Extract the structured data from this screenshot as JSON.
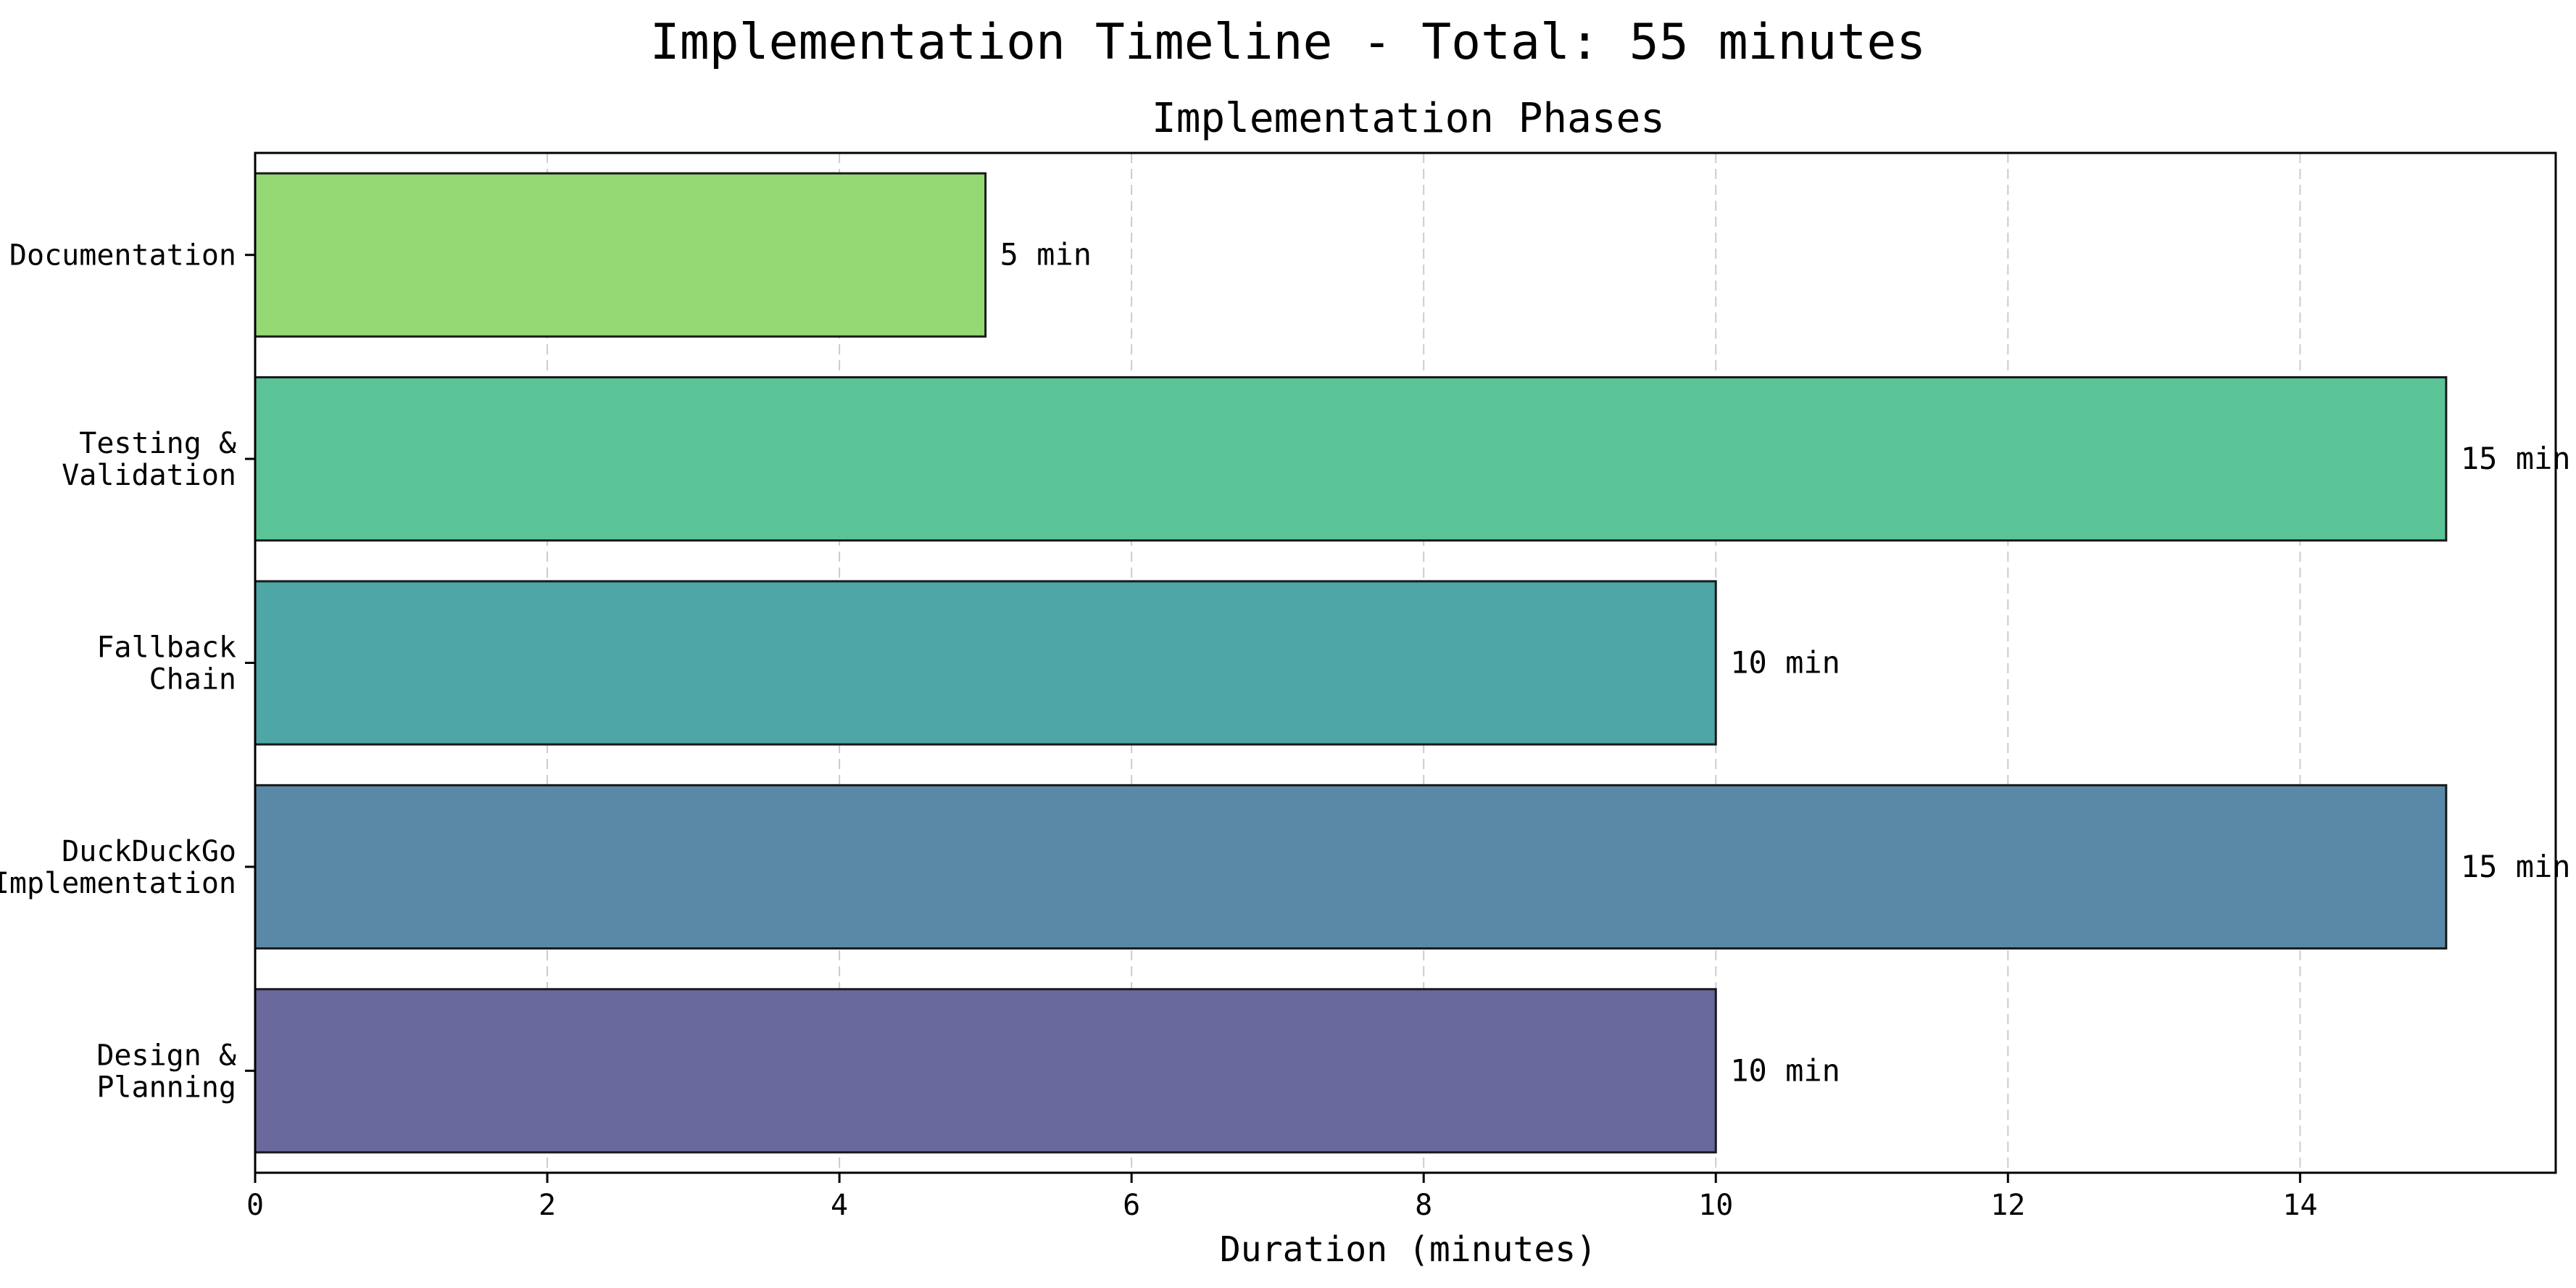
{
  "figure": {
    "suptitle": "Implementation Timeline - Total: 55 minutes"
  },
  "chart_data": {
    "type": "bar",
    "orientation": "horizontal",
    "title": "Implementation Phases",
    "xlabel": "Duration (minutes)",
    "ylabel": "",
    "xlim": [
      0,
      15.75
    ],
    "xticks": [
      0,
      2,
      4,
      6,
      8,
      10,
      12,
      14
    ],
    "grid": "x-dashed",
    "categories": [
      [
        "Design &",
        "Planning"
      ],
      [
        "DuckDuckGo",
        "Implementation"
      ],
      [
        "Fallback",
        "Chain"
      ],
      [
        "Testing &",
        "Validation"
      ],
      [
        "Documentation"
      ]
    ],
    "values": [
      10,
      15,
      10,
      15,
      5
    ],
    "value_labels": [
      "10 min",
      "15 min",
      "10 min",
      "15 min",
      "5 min"
    ],
    "colors": [
      "#69699e",
      "#5a89a8",
      "#4ea6a6",
      "#5bc496",
      "#95d974"
    ],
    "edge_color": "#1a1a1a"
  }
}
